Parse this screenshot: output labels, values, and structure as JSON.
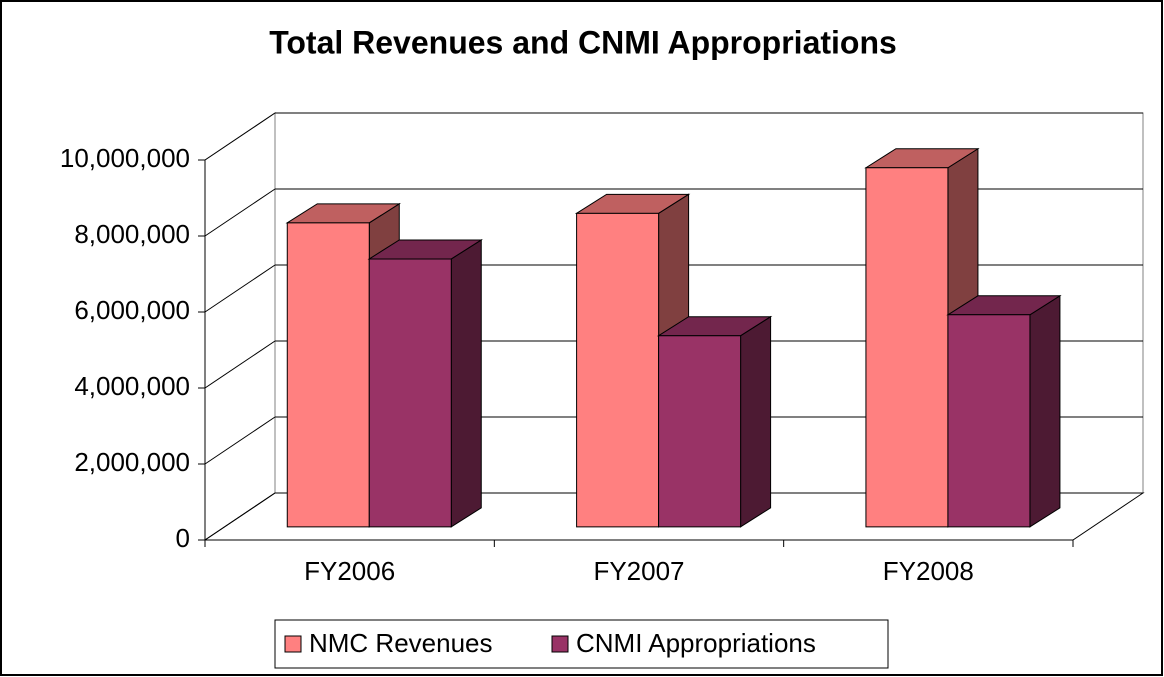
{
  "chart_data": {
    "type": "bar3d",
    "title": "Total Revenues and CNMI Appropriations",
    "categories": [
      "FY2006",
      "FY2007",
      "FY2008"
    ],
    "series": [
      {
        "name": "NMC Revenues",
        "color": "#ff8080",
        "values": [
          8000000,
          8250000,
          9450000
        ]
      },
      {
        "name": "CNMI Appropriations",
        "color": "#993366",
        "values": [
          7050000,
          5030000,
          5580000
        ]
      }
    ],
    "ylim": [
      0,
      10000000
    ],
    "yticks": [
      0,
      {
        "value": 2000000,
        "label": "2,000,000"
      },
      {
        "value": 4000000,
        "label": "4,000,000"
      },
      {
        "value": 6000000,
        "label": "6,000,000"
      },
      {
        "value": 8000000,
        "label": "8,000,000"
      },
      {
        "value": 10000000,
        "label": "10,000,000"
      }
    ],
    "grid": true,
    "legend": "bottom"
  }
}
